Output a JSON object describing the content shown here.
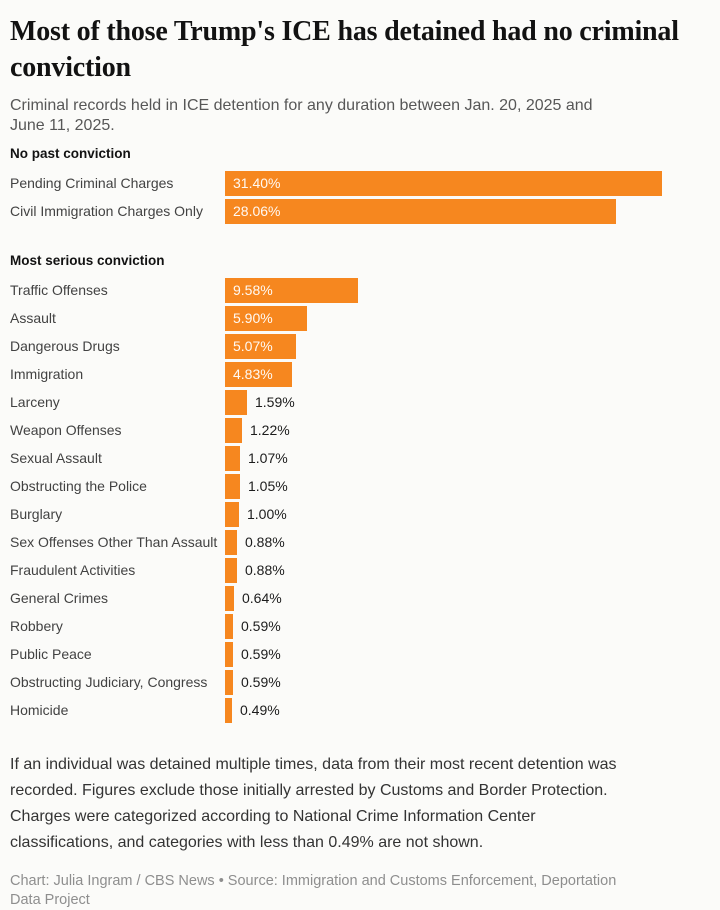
{
  "header": {
    "title": "Most of those Trump's ICE has detained had no criminal conviction",
    "subtitle": "Criminal records held in ICE detention for any duration between Jan. 20, 2025 and June 11, 2025.",
    "subtitle_lines": [
      "Criminal records held in ICE detention for any duration between Jan. 20, 2025 and",
      "June 11, 2025."
    ]
  },
  "colors": {
    "bar": "#f6871f",
    "bar_label_inside": "#ffffff",
    "bar_label_outside": "#1c1c1c"
  },
  "chart_data": {
    "type": "bar",
    "orientation": "horizontal",
    "unit": "%",
    "max_value": 31.4,
    "value_axis_range": [
      0,
      31.4
    ],
    "grid": "off",
    "legend": "none",
    "sections": [
      {
        "heading": "No past conviction",
        "items": [
          {
            "label": "Pending Criminal Charges",
            "value": 31.4,
            "display": "31.40%",
            "label_position": "inside"
          },
          {
            "label": "Civil Immigration Charges Only",
            "value": 28.06,
            "display": "28.06%",
            "label_position": "inside"
          }
        ]
      },
      {
        "heading": "Most serious conviction",
        "items": [
          {
            "label": "Traffic Offenses",
            "value": 9.58,
            "display": "9.58%",
            "label_position": "inside"
          },
          {
            "label": "Assault",
            "value": 5.9,
            "display": "5.90%",
            "label_position": "inside"
          },
          {
            "label": "Dangerous Drugs",
            "value": 5.07,
            "display": "5.07%",
            "label_position": "inside"
          },
          {
            "label": "Immigration",
            "value": 4.83,
            "display": "4.83%",
            "label_position": "inside"
          },
          {
            "label": "Larceny",
            "value": 1.59,
            "display": "1.59%",
            "label_position": "outside"
          },
          {
            "label": "Weapon Offenses",
            "value": 1.22,
            "display": "1.22%",
            "label_position": "outside"
          },
          {
            "label": "Sexual Assault",
            "value": 1.07,
            "display": "1.07%",
            "label_position": "outside"
          },
          {
            "label": "Obstructing the Police",
            "value": 1.05,
            "display": "1.05%",
            "label_position": "outside"
          },
          {
            "label": "Burglary",
            "value": 1.0,
            "display": "1.00%",
            "label_position": "outside"
          },
          {
            "label": "Sex Offenses Other Than Assault",
            "value": 0.88,
            "display": "0.88%",
            "label_position": "outside"
          },
          {
            "label": "Fraudulent Activities",
            "value": 0.88,
            "display": "0.88%",
            "label_position": "outside"
          },
          {
            "label": "General Crimes",
            "value": 0.64,
            "display": "0.64%",
            "label_position": "outside"
          },
          {
            "label": "Robbery",
            "value": 0.59,
            "display": "0.59%",
            "label_position": "outside"
          },
          {
            "label": "Public Peace",
            "value": 0.59,
            "display": "0.59%",
            "label_position": "outside"
          },
          {
            "label": "Obstructing Judiciary, Congress",
            "value": 0.59,
            "display": "0.59%",
            "label_position": "outside"
          },
          {
            "label": "Homicide",
            "value": 0.49,
            "display": "0.49%",
            "label_position": "outside"
          }
        ]
      }
    ]
  },
  "footer": {
    "note": "If an individual was detained multiple times, data from their most recent detention was recorded. Figures exclude those initially arrested by Customs and Border Protection. Charges were categorized according to National Crime Information Center classifications, and categories with less than 0.49% are not shown.",
    "note_lines": [
      "If an individual was detained multiple times, data from their most recent detention was",
      "recorded. Figures exclude those initially arrested by Customs and Border Protection.",
      "Charges were categorized according to National Crime Information Center",
      "classifications, and categories with less than 0.49% are not shown."
    ],
    "credit": "Chart: Julia Ingram / CBS News • Source: Immigration and Customs Enforcement, Deportation Data Project",
    "credit_lines": [
      "Chart: Julia Ingram / CBS News • Source: Immigration and Customs Enforcement, Deportation",
      "Data Project"
    ]
  }
}
